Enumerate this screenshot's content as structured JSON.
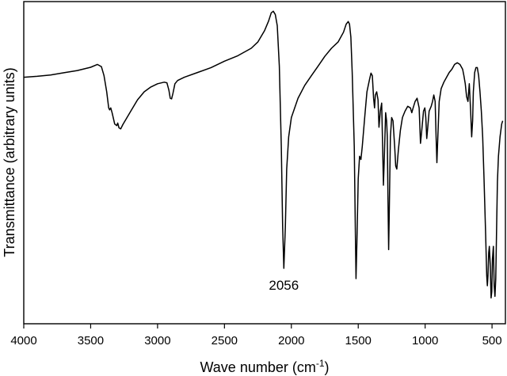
{
  "chart_data": {
    "type": "line",
    "title": "",
    "xlabel": "Wave number (cm",
    "xlabel_superscript": "-1",
    "xlabel_suffix": ")",
    "ylabel": "Transmittance (arbitrary units)",
    "xlim": [
      4000,
      400
    ],
    "x_reversed": true,
    "ylim": [
      0,
      100
    ],
    "y_tick_labels": false,
    "grid": false,
    "legend": "none",
    "x_ticks": [
      {
        "value": 4000,
        "label": "4000"
      },
      {
        "value": 3500,
        "label": "3500"
      },
      {
        "value": 3000,
        "label": "3000"
      },
      {
        "value": 2500,
        "label": "2500"
      },
      {
        "value": 2000,
        "label": "2000"
      },
      {
        "value": 1500,
        "label": "1500"
      },
      {
        "value": 1000,
        "label": "1000"
      },
      {
        "value": 500,
        "label": "500"
      }
    ],
    "annotations": [
      {
        "text": "2056",
        "x": 2056,
        "y": 14.5
      }
    ],
    "series": [
      {
        "color": "#000000",
        "points": [
          [
            4000,
            76.5
          ],
          [
            3900,
            76.8
          ],
          [
            3800,
            77.2
          ],
          [
            3700,
            77.9
          ],
          [
            3600,
            78.6
          ],
          [
            3500,
            79.6
          ],
          [
            3450,
            80.5
          ],
          [
            3420,
            79.8
          ],
          [
            3400,
            77.0
          ],
          [
            3380,
            72.0
          ],
          [
            3365,
            67.0
          ],
          [
            3358,
            66.4
          ],
          [
            3350,
            67.0
          ],
          [
            3340,
            65.5
          ],
          [
            3320,
            62.0
          ],
          [
            3305,
            61.5
          ],
          [
            3298,
            62.3
          ],
          [
            3288,
            60.8
          ],
          [
            3275,
            60.5
          ],
          [
            3260,
            61.8
          ],
          [
            3200,
            66.0
          ],
          [
            3150,
            69.5
          ],
          [
            3100,
            72.0
          ],
          [
            3050,
            73.5
          ],
          [
            3000,
            74.5
          ],
          [
            2950,
            75.0
          ],
          [
            2930,
            74.8
          ],
          [
            2915,
            72.5
          ],
          [
            2905,
            70.0
          ],
          [
            2895,
            69.8
          ],
          [
            2885,
            71.5
          ],
          [
            2870,
            74.5
          ],
          [
            2850,
            75.5
          ],
          [
            2800,
            76.5
          ],
          [
            2700,
            78.0
          ],
          [
            2600,
            79.5
          ],
          [
            2500,
            81.5
          ],
          [
            2400,
            83.2
          ],
          [
            2300,
            85.5
          ],
          [
            2250,
            87.5
          ],
          [
            2200,
            91.0
          ],
          [
            2170,
            94.0
          ],
          [
            2150,
            96.5
          ],
          [
            2135,
            97.0
          ],
          [
            2120,
            96.0
          ],
          [
            2105,
            92.5
          ],
          [
            2090,
            80.0
          ],
          [
            2075,
            55.0
          ],
          [
            2065,
            30.0
          ],
          [
            2056,
            17.2
          ],
          [
            2045,
            30.0
          ],
          [
            2035,
            48.0
          ],
          [
            2020,
            58.0
          ],
          [
            2000,
            64.0
          ],
          [
            1950,
            70.0
          ],
          [
            1900,
            74.0
          ],
          [
            1850,
            77.0
          ],
          [
            1800,
            80.0
          ],
          [
            1750,
            83.0
          ],
          [
            1700,
            85.5
          ],
          [
            1650,
            87.5
          ],
          [
            1610,
            90.5
          ],
          [
            1590,
            93.0
          ],
          [
            1575,
            93.8
          ],
          [
            1565,
            93.0
          ],
          [
            1555,
            89.0
          ],
          [
            1545,
            78.0
          ],
          [
            1530,
            55.0
          ],
          [
            1522,
            30.0
          ],
          [
            1517,
            14.0
          ],
          [
            1510,
            25.0
          ],
          [
            1500,
            45.0
          ],
          [
            1490,
            52.0
          ],
          [
            1480,
            51.0
          ],
          [
            1470,
            55.0
          ],
          [
            1450,
            65.0
          ],
          [
            1435,
            72.0
          ],
          [
            1425,
            74.0
          ],
          [
            1415,
            76.0
          ],
          [
            1405,
            77.8
          ],
          [
            1395,
            77.0
          ],
          [
            1385,
            70.0
          ],
          [
            1378,
            67.0
          ],
          [
            1372,
            71.0
          ],
          [
            1362,
            72.0
          ],
          [
            1352,
            69.5
          ],
          [
            1345,
            61.0
          ],
          [
            1335,
            66.0
          ],
          [
            1325,
            68.5
          ],
          [
            1318,
            55.0
          ],
          [
            1312,
            43.0
          ],
          [
            1305,
            52.0
          ],
          [
            1295,
            65.5
          ],
          [
            1288,
            63.0
          ],
          [
            1283,
            58.0
          ],
          [
            1278,
            40.0
          ],
          [
            1273,
            23.0
          ],
          [
            1268,
            35.0
          ],
          [
            1260,
            58.0
          ],
          [
            1250,
            64.0
          ],
          [
            1240,
            63.0
          ],
          [
            1228,
            55.0
          ],
          [
            1220,
            49.0
          ],
          [
            1212,
            48.0
          ],
          [
            1200,
            54.0
          ],
          [
            1185,
            60.0
          ],
          [
            1170,
            64.0
          ],
          [
            1150,
            66.0
          ],
          [
            1130,
            67.5
          ],
          [
            1110,
            67.0
          ],
          [
            1100,
            65.5
          ],
          [
            1090,
            67.0
          ],
          [
            1075,
            69.0
          ],
          [
            1060,
            70.0
          ],
          [
            1045,
            67.0
          ],
          [
            1035,
            56.0
          ],
          [
            1025,
            60.0
          ],
          [
            1012,
            66.0
          ],
          [
            1002,
            67.0
          ],
          [
            995,
            64.0
          ],
          [
            988,
            57.5
          ],
          [
            980,
            61.0
          ],
          [
            970,
            66.0
          ],
          [
            955,
            67.5
          ],
          [
            945,
            69.0
          ],
          [
            935,
            71.0
          ],
          [
            925,
            69.0
          ],
          [
            918,
            58.0
          ],
          [
            912,
            50.0
          ],
          [
            905,
            58.0
          ],
          [
            895,
            69.0
          ],
          [
            880,
            73.0
          ],
          [
            860,
            75.0
          ],
          [
            840,
            76.5
          ],
          [
            820,
            78.0
          ],
          [
            800,
            79.0
          ],
          [
            780,
            80.5
          ],
          [
            760,
            81.0
          ],
          [
            740,
            80.5
          ],
          [
            720,
            79.0
          ],
          [
            710,
            77.0
          ],
          [
            700,
            74.5
          ],
          [
            690,
            70.5
          ],
          [
            680,
            69.0
          ],
          [
            675,
            72.0
          ],
          [
            670,
            74.5
          ],
          [
            660,
            66.0
          ],
          [
            652,
            58.0
          ],
          [
            645,
            63.0
          ],
          [
            640,
            72.0
          ],
          [
            630,
            78.0
          ],
          [
            620,
            79.5
          ],
          [
            610,
            79.5
          ],
          [
            600,
            77.0
          ],
          [
            590,
            72.0
          ],
          [
            580,
            66.0
          ],
          [
            570,
            58.0
          ],
          [
            560,
            45.0
          ],
          [
            548,
            28.0
          ],
          [
            540,
            15.0
          ],
          [
            535,
            11.8
          ],
          [
            530,
            15.0
          ],
          [
            525,
            22.0
          ],
          [
            520,
            24.0
          ],
          [
            513,
            18.0
          ],
          [
            507,
            8.0
          ],
          [
            502,
            10.0
          ],
          [
            497,
            20.0
          ],
          [
            490,
            24.0
          ],
          [
            484,
            12.0
          ],
          [
            478,
            8.5
          ],
          [
            472,
            14.0
          ],
          [
            466,
            30.0
          ],
          [
            460,
            44.0
          ],
          [
            452,
            52.0
          ],
          [
            440,
            58.0
          ],
          [
            428,
            62.0
          ],
          [
            420,
            63.0
          ]
        ]
      }
    ]
  }
}
